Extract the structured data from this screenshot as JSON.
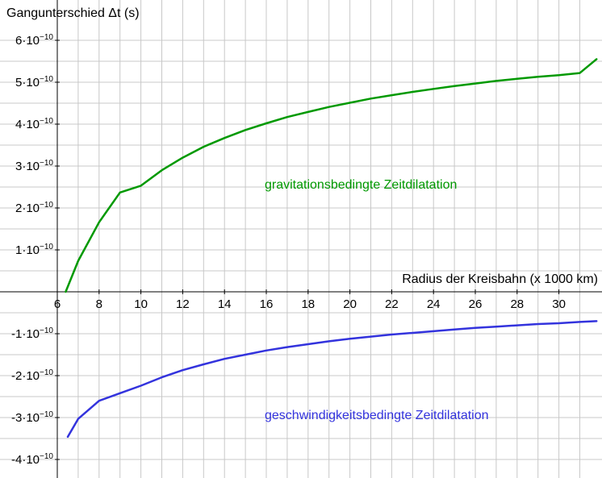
{
  "chart_data": {
    "type": "line",
    "ylabel": "Gangunterschied Δt (s)",
    "xlabel": "Radius der Kreisbahn (x 1000 km)",
    "xlim": [
      6,
      31.8
    ],
    "ylim": [
      -4.2e-10,
      6.3e-10
    ],
    "grid": true,
    "x_ticks": [
      6,
      8,
      10,
      12,
      14,
      16,
      18,
      20,
      22,
      24,
      26,
      28,
      30
    ],
    "y_ticks": [
      {
        "value": 6e-10,
        "coef": "6",
        "base": "·10",
        "exp": "−10"
      },
      {
        "value": 5e-10,
        "coef": "5",
        "base": "·10",
        "exp": "−10"
      },
      {
        "value": 4e-10,
        "coef": "4",
        "base": "·10",
        "exp": "−10"
      },
      {
        "value": 3e-10,
        "coef": "3",
        "base": "·10",
        "exp": "−10"
      },
      {
        "value": 2e-10,
        "coef": "2",
        "base": "·10",
        "exp": "−10"
      },
      {
        "value": 1e-10,
        "coef": "1",
        "base": "·10",
        "exp": "−10"
      },
      {
        "value": -1e-10,
        "coef": "-1",
        "base": "·10",
        "exp": "−10"
      },
      {
        "value": -2e-10,
        "coef": "-2",
        "base": "·10",
        "exp": "−10"
      },
      {
        "value": -3e-10,
        "coef": "-3",
        "base": "·10",
        "exp": "−10"
      },
      {
        "value": -4e-10,
        "coef": "-4",
        "base": "·10",
        "exp": "−10"
      }
    ],
    "series": [
      {
        "name": "gravitationsbedingte Zeitdilatation",
        "color": "#009900",
        "x": [
          6.4,
          7,
          8,
          9,
          10,
          11,
          12,
          13,
          14,
          15,
          16,
          17,
          18,
          19,
          20,
          21,
          22,
          23,
          24,
          25,
          26,
          27,
          28,
          29,
          30,
          31,
          31.8
        ],
        "y": [
          0,
          7.38e-11,
          1.66e-10,
          2.37e-10,
          2.53e-10,
          2.9e-10,
          3.2e-10,
          3.46e-10,
          3.67e-10,
          3.86e-10,
          4.02e-10,
          4.17e-10,
          4.29e-10,
          4.41e-10,
          4.51e-10,
          4.61e-10,
          4.69e-10,
          4.77e-10,
          4.84e-10,
          4.91e-10,
          4.97e-10,
          5.03e-10,
          5.08e-10,
          5.13e-10,
          5.17e-10,
          5.22e-10,
          5.55e-10
        ]
      },
      {
        "name": "geschwindigkeitsbedingte Zeitdilatation",
        "color": "#3333dd",
        "x": [
          6.5,
          7,
          8,
          9,
          10,
          11,
          12,
          13,
          14,
          15,
          16,
          17,
          18,
          19,
          20,
          21,
          22,
          23,
          24,
          25,
          26,
          27,
          28,
          29,
          30,
          31,
          31.8
        ],
        "y": [
          -3.46e-10,
          -3.03e-10,
          -2.6e-10,
          -2.42e-10,
          -2.24e-10,
          -2.04e-10,
          -1.87e-10,
          -1.73e-10,
          -1.6e-10,
          -1.5e-10,
          -1.4e-10,
          -1.32e-10,
          -1.25e-10,
          -1.18e-10,
          -1.12e-10,
          -1.07e-10,
          -1.02e-10,
          -9.8e-11,
          -9.4e-11,
          -9e-11,
          -8.6e-11,
          -8.3e-11,
          -8e-11,
          -7.7e-11,
          -7.5e-11,
          -7.2e-11,
          -7e-11
        ]
      }
    ]
  }
}
